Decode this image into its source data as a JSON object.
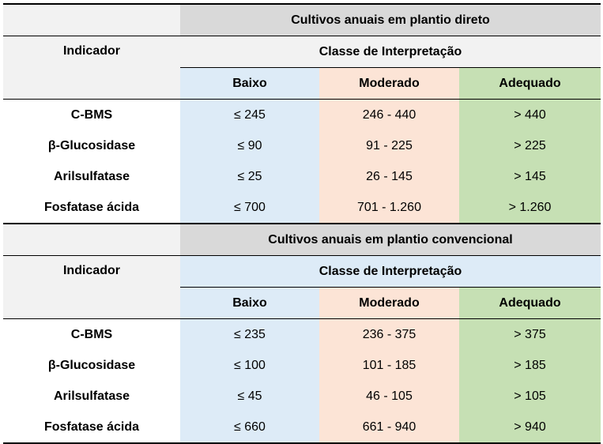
{
  "tables": [
    {
      "title": "Cultivos anuais em plantio direto",
      "indicator_header": "Indicador",
      "class_header": "Classe de Interpretação",
      "levels": [
        "Baixo",
        "Moderado",
        "Adequado"
      ],
      "rows": [
        {
          "indicator": "C-BMS",
          "baixo": "≤ 245",
          "moderado": "246 - 440",
          "adequado": "> 440"
        },
        {
          "indicator": "β-Glucosidase",
          "baixo": "≤ 90",
          "moderado": "91 - 225",
          "adequado": "> 225"
        },
        {
          "indicator": "Arilsulfatase",
          "baixo": "≤ 25",
          "moderado": "26 - 145",
          "adequado": "> 145"
        },
        {
          "indicator": "Fosfatase ácida",
          "baixo": "≤ 700",
          "moderado": "701 - 1.260",
          "adequado": "> 1.260"
        }
      ]
    },
    {
      "title": "Cultivos anuais em plantio convencional",
      "indicator_header": "Indicador",
      "class_header": "Classe de Interpretação",
      "levels": [
        "Baixo",
        "Moderado",
        "Adequado"
      ],
      "rows": [
        {
          "indicator": "C-BMS",
          "baixo": "≤ 235",
          "moderado": "236 - 375",
          "adequado": "> 375"
        },
        {
          "indicator": "β-Glucosidase",
          "baixo": "≤ 100",
          "moderado": "101 - 185",
          "adequado": "> 185"
        },
        {
          "indicator": "Arilsulfatase",
          "baixo": "≤ 45",
          "moderado": "46 - 105",
          "adequado": "> 105"
        },
        {
          "indicator": "Fosfatase ácida",
          "baixo": "≤ 660",
          "moderado": "661 - 940",
          "adequado": "> 940"
        }
      ]
    }
  ],
  "colors": {
    "title_bg": "#d9d9d9",
    "header_bg": "#f2f2f2",
    "baixo_bg": "#ddebf7",
    "moderado_bg": "#fce4d6",
    "adequado_bg": "#c6e0b4"
  }
}
